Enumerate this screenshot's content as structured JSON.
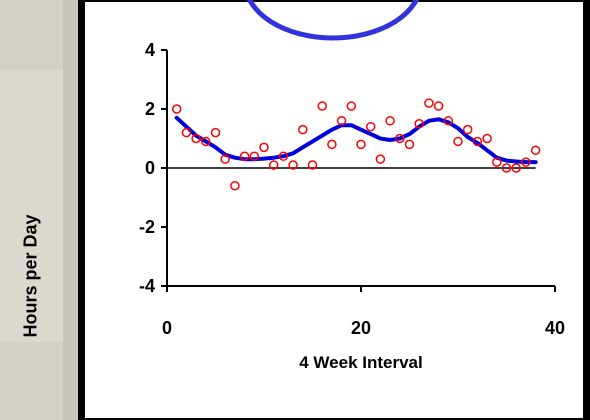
{
  "app": {
    "accent_circle_color": "#3333dd"
  },
  "chart_data": {
    "type": "scatter",
    "title": "",
    "xlabel": "4 Week Interval",
    "ylabel": "Hours per Day",
    "xlim": [
      0,
      40
    ],
    "ylim": [
      -4,
      4
    ],
    "xticks": [
      0,
      20,
      40
    ],
    "yticks": [
      4,
      2,
      0,
      -2,
      -4
    ],
    "xtick_labels": [
      "0",
      "20",
      "40"
    ],
    "ytick_labels": [
      "4",
      "2",
      "0",
      "-2",
      "-4"
    ],
    "grid": false,
    "legend": "none",
    "zero_line": 0,
    "marker_color": "#ff0000",
    "line_color": "#0000dd",
    "series": [
      {
        "type": "scatter",
        "x": [
          1,
          2,
          3,
          4,
          5,
          6,
          7,
          8,
          9,
          10,
          11,
          12,
          13,
          14,
          15,
          16,
          17,
          18,
          19,
          20,
          21,
          22,
          23,
          24,
          25,
          26,
          27,
          28,
          29,
          30,
          31,
          32,
          33,
          34,
          35,
          36,
          37,
          38
        ],
        "y": [
          2.0,
          1.2,
          1.0,
          0.9,
          1.2,
          0.3,
          -0.6,
          0.4,
          0.4,
          0.7,
          0.1,
          0.4,
          0.1,
          1.3,
          0.1,
          2.1,
          0.8,
          1.6,
          2.1,
          0.8,
          1.4,
          0.3,
          1.6,
          1.0,
          0.8,
          1.5,
          2.2,
          2.1,
          1.6,
          0.9,
          1.3,
          0.9,
          1.0,
          0.2,
          0.0,
          0.0,
          0.2,
          0.6
        ]
      },
      {
        "type": "line",
        "x": [
          1,
          2,
          3,
          4,
          5,
          6,
          7,
          8,
          9,
          10,
          11,
          12,
          13,
          14,
          15,
          16,
          17,
          18,
          19,
          20,
          21,
          22,
          23,
          24,
          25,
          26,
          27,
          28,
          29,
          30,
          31,
          32,
          33,
          34,
          35,
          36,
          37,
          38
        ],
        "y": [
          1.7,
          1.4,
          1.1,
          0.9,
          0.7,
          0.45,
          0.35,
          0.3,
          0.3,
          0.32,
          0.35,
          0.4,
          0.5,
          0.7,
          0.9,
          1.1,
          1.3,
          1.45,
          1.45,
          1.3,
          1.15,
          1.0,
          0.95,
          1.0,
          1.15,
          1.4,
          1.6,
          1.65,
          1.55,
          1.35,
          1.05,
          0.85,
          0.6,
          0.35,
          0.25,
          0.22,
          0.2,
          0.2
        ]
      }
    ]
  }
}
